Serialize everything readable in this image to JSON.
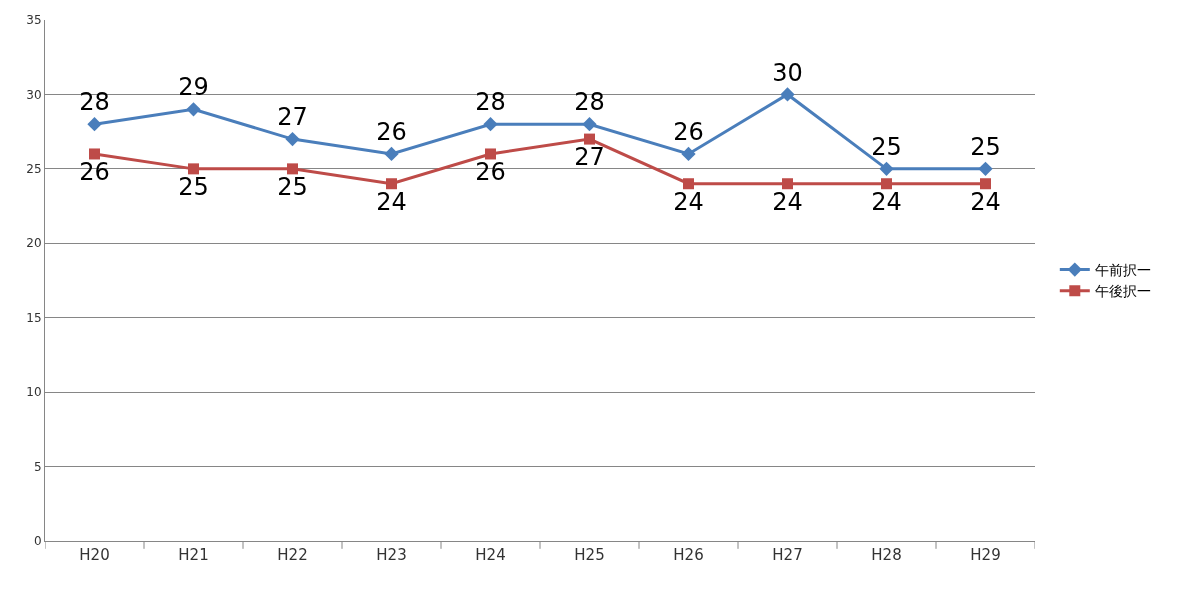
{
  "chart_data": {
    "type": "line",
    "categories": [
      "H20",
      "H21",
      "H22",
      "H23",
      "H24",
      "H25",
      "H26",
      "H27",
      "H28",
      "H29"
    ],
    "series": [
      {
        "name": "午前択一",
        "color": "#4a7ebb",
        "marker": "diamond",
        "values": [
          28,
          29,
          27,
          26,
          28,
          28,
          26,
          30,
          25,
          25
        ]
      },
      {
        "name": "午後択一",
        "color": "#be4b48",
        "marker": "square",
        "values": [
          26,
          25,
          25,
          24,
          26,
          27,
          24,
          24,
          24,
          24
        ]
      }
    ],
    "ylim": [
      0,
      35
    ],
    "yticks": [
      0,
      5,
      10,
      15,
      20,
      25,
      30,
      35
    ],
    "grid": "y",
    "legend": "right",
    "data_labels": true,
    "line_style": "solid"
  }
}
